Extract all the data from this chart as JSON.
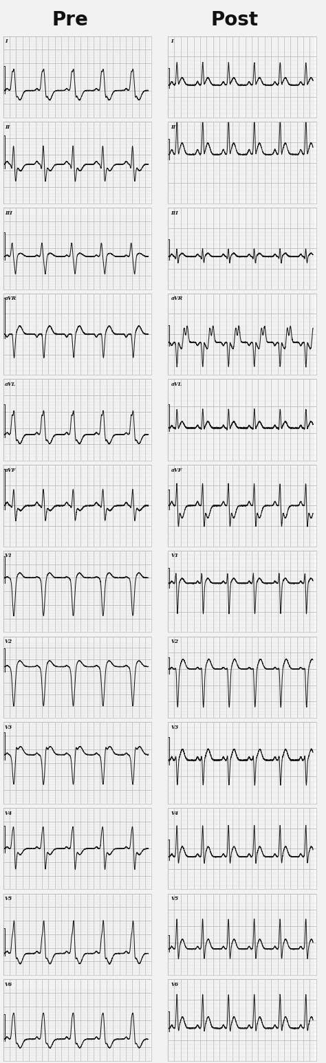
{
  "title_left": "Pre",
  "title_right": "Post",
  "bg_color": "#f8f8f8",
  "grid_major_color": "#bbbbbb",
  "grid_minor_color": "#dddddd",
  "line_color": "#1a1a1a",
  "leads": [
    "I",
    "II",
    "III",
    "aVR",
    "aVL",
    "aVF",
    "V1",
    "V2",
    "V3",
    "V4",
    "V5",
    "V6"
  ],
  "fs": 500,
  "duration": 4.5,
  "hr_pre": 65,
  "hr_post": 75
}
